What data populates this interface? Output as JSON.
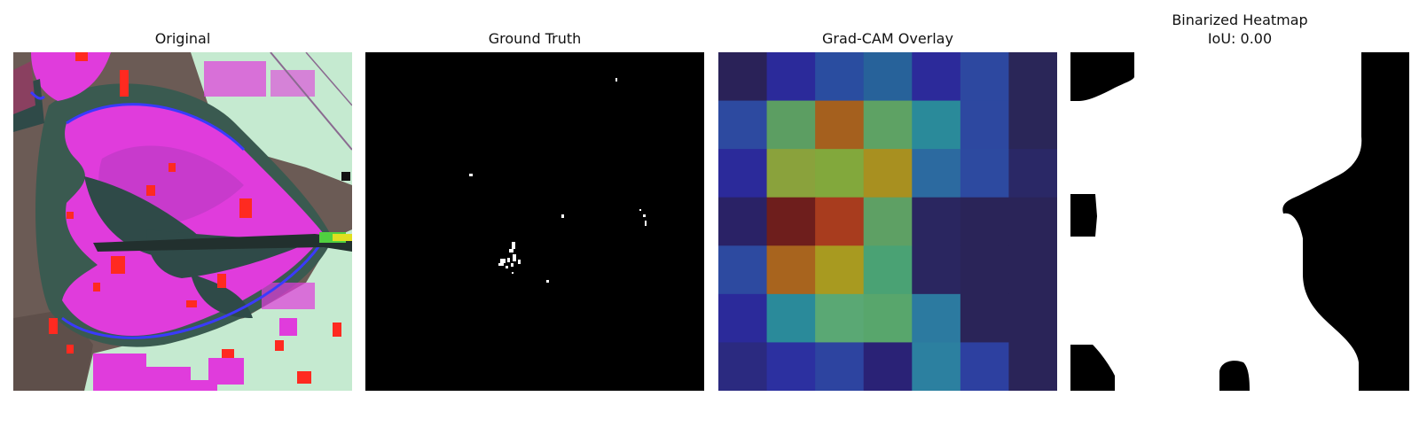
{
  "panels": [
    {
      "title": "Original"
    },
    {
      "title": "Ground Truth"
    },
    {
      "title": "Grad-CAM Overlay"
    },
    {
      "title_line1": "Binarized Heatmap",
      "title_line2": "IoU: 0.00"
    }
  ],
  "gradcam_grid": [
    [
      "#2a2258",
      "#2b2a9a",
      "#2a4da0",
      "#27629a",
      "#2c2a9a",
      "#2d48a0",
      "#2a2658"
    ],
    [
      "#2d4aa0",
      "#5c9e62",
      "#a5601e",
      "#5ea264",
      "#2a8a9a",
      "#2d48a0",
      "#2a2658"
    ],
    [
      "#2b2a9a",
      "#8aa23c",
      "#82a83c",
      "#a89020",
      "#2c6aa0",
      "#2d4aa0",
      "#2a2866"
    ],
    [
      "#2a2266",
      "#6e1e1c",
      "#a83c1e",
      "#5ea064",
      "#2a2660",
      "#2a2458",
      "#2a2458"
    ],
    [
      "#2d4aa0",
      "#a8641e",
      "#a89a20",
      "#4aa274",
      "#2a2660",
      "#2a2458",
      "#2a2458"
    ],
    [
      "#2b2a9a",
      "#2a8a9a",
      "#5aa874",
      "#58a66c",
      "#2c7aa0",
      "#2a2458",
      "#2a2458"
    ],
    [
      "#2b2a80",
      "#2c30a0",
      "#2d44a0",
      "#2a2276",
      "#2c80a0",
      "#2d40a0",
      "#2a2458"
    ]
  ]
}
